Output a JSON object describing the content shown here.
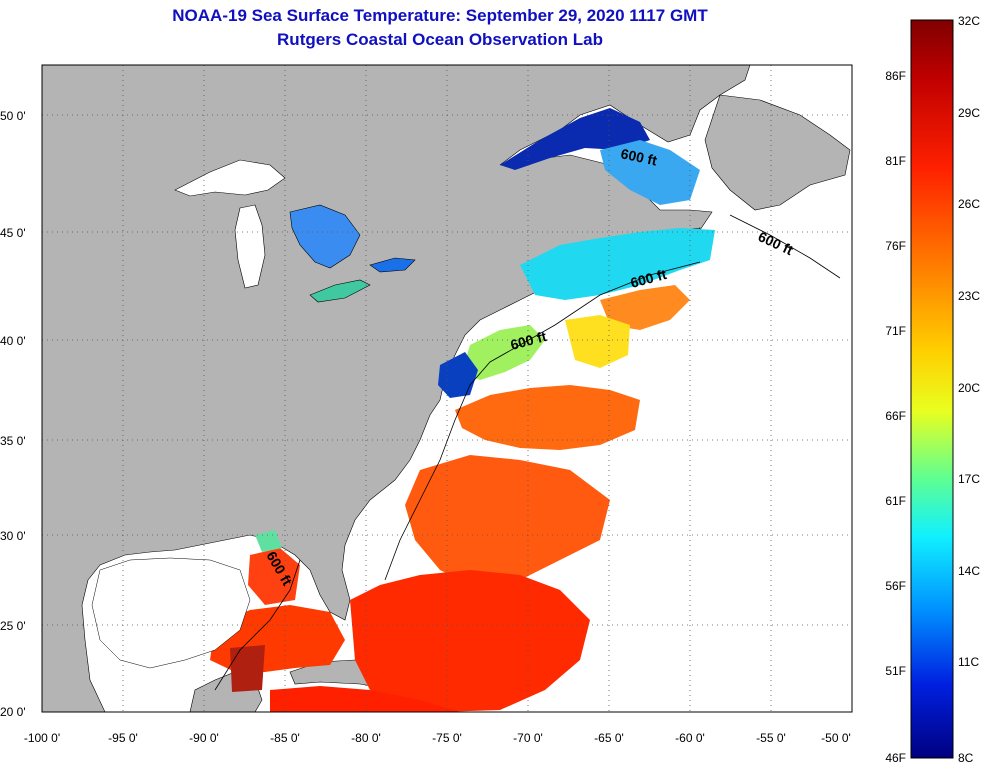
{
  "header": {
    "title": "NOAA-19 Sea Surface Temperature:  September 29, 2020 1117 GMT",
    "subtitle": "Rutgers Coastal Ocean Observation Lab"
  },
  "map": {
    "lon_labels": [
      "-100 0'",
      "-95 0'",
      "-90 0'",
      "-85 0'",
      "-80 0'",
      "-75 0'",
      "-70 0'",
      "-65 0'",
      "-60 0'",
      "-55 0'",
      "-50 0'"
    ],
    "lat_labels": [
      "20 0'",
      "25 0'",
      "30 0'",
      "35 0'",
      "40 0'",
      "45 0'",
      "50 0'"
    ],
    "contour_label": "600 ft",
    "colors": {
      "land": "#b4b4b4",
      "ocean_nodata": "#ffffff",
      "frame": "#000000"
    }
  },
  "colorbar": {
    "celsius_labels": [
      "32C",
      "29C",
      "26C",
      "23C",
      "20C",
      "17C",
      "14C",
      "11C",
      "8C"
    ],
    "fahrenheit_labels": [
      "86F",
      "81F",
      "76F",
      "71F",
      "66F",
      "61F",
      "56F",
      "51F",
      "46F"
    ],
    "range_celsius": [
      8,
      32
    ],
    "colors": [
      "#800000",
      "#d00000",
      "#ff2000",
      "#ff7000",
      "#ffc000",
      "#f0ff10",
      "#90ff60",
      "#30ffc0",
      "#00e0ff",
      "#0090ff",
      "#0040ff",
      "#0000d0",
      "#000080"
    ]
  }
}
